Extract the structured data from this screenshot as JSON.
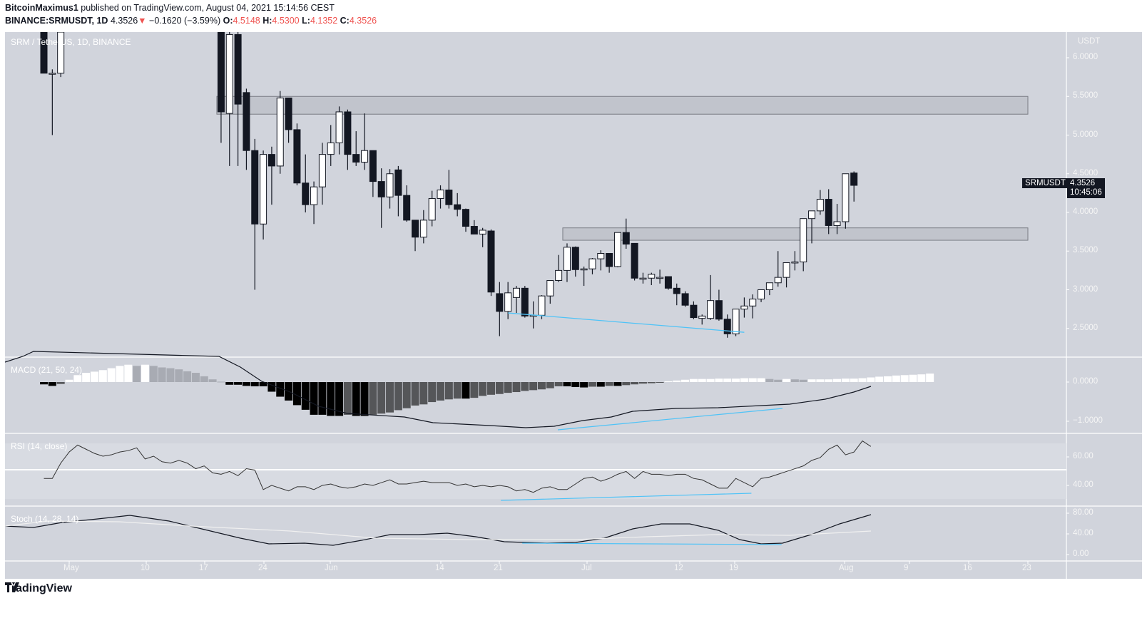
{
  "header": {
    "line1_author": "BitcoinMaximus1",
    "line1_rest": " published on TradingView.com, August 04, 2021 15:14:56 CEST",
    "symbol": "BINANCE:SRMUSDT, 1D",
    "last": "4.3526",
    "change_arrow": "▼",
    "change": "−0.1620 (−3.59%)",
    "o_label": "O:",
    "o": "4.5148",
    "h_label": "H:",
    "h": "4.5300",
    "l_label": "L:",
    "l": "4.1352",
    "c_label": "C:",
    "c": "4.3526"
  },
  "chart": {
    "title": "SRM / TetherUS, 1D, BINANCE",
    "currency": "USDT",
    "price_tag_symbol": "SRMUSDT",
    "price_tag_value": "4.3526",
    "price_tag_countdown": "10:45:06",
    "macd_label": "MACD (21, 50, 24)",
    "rsi_label": "RSI (14, close)",
    "stoch_label": "Stoch (14, 28, 14)"
  },
  "colors": {
    "background": "#d1d4dc",
    "bull_body": "#ffffff",
    "bear_body": "#131722",
    "zone_fill": "#c1c4cc",
    "zone_border": "#7a7d85",
    "divergence_line": "#4fc3f7",
    "hist_dark": "#000000",
    "hist_grey": "#555659",
    "hist_light": "#a8abb3"
  },
  "footer": {
    "brand": "TradingView"
  },
  "chart_data": [
    {
      "type": "candlestick",
      "title": "SRM / TetherUS, 1D, BINANCE",
      "ylabel": "USDT",
      "yticks": [
        6.0,
        5.5,
        5.0,
        4.5,
        4.0,
        3.5,
        3.0,
        2.5
      ],
      "ylim": [
        2.2,
        6.3
      ],
      "xticks": [
        "May",
        "10",
        "17",
        "24",
        "Jun",
        "14",
        "21",
        "Jul",
        "12",
        "19",
        "Aug",
        "9",
        "16",
        "23"
      ],
      "resistance_zones": [
        {
          "low": 5.27,
          "high": 5.5,
          "from": "May 19",
          "to": "Aug 23"
        },
        {
          "low": 3.64,
          "high": 3.8,
          "from": "Jun 29",
          "to": "Aug 23"
        }
      ],
      "divergence_line": {
        "from": {
          "date": "Jun 22",
          "price": 2.7
        },
        "to": {
          "date": "Jul 20",
          "price": 2.45
        }
      },
      "last_price": 4.3526,
      "candles": [
        {
          "d": "Apr 28",
          "o": 6.4,
          "h": 6.6,
          "l": 5.8,
          "c": 5.8
        },
        {
          "d": "Apr 29",
          "o": 5.8,
          "h": 5.85,
          "l": 5.0,
          "c": 5.8
        },
        {
          "d": "Apr 30",
          "o": 5.8,
          "h": 6.5,
          "l": 5.75,
          "c": 6.4
        },
        {
          "d": "May 19",
          "o": 6.4,
          "h": 6.5,
          "l": 4.9,
          "c": 5.3
        },
        {
          "d": "May 20",
          "o": 5.28,
          "h": 6.4,
          "l": 4.6,
          "c": 6.3
        },
        {
          "d": "May 21",
          "o": 6.3,
          "h": 6.4,
          "l": 4.6,
          "c": 5.4
        },
        {
          "d": "May 22",
          "o": 5.55,
          "h": 5.6,
          "l": 4.55,
          "c": 4.8
        },
        {
          "d": "May 23",
          "o": 4.8,
          "h": 4.95,
          "l": 3.0,
          "c": 3.85
        },
        {
          "d": "May 24",
          "o": 3.85,
          "h": 4.8,
          "l": 3.65,
          "c": 4.75
        },
        {
          "d": "May 25",
          "o": 4.75,
          "h": 4.85,
          "l": 4.1,
          "c": 4.6
        },
        {
          "d": "May 26",
          "o": 4.6,
          "h": 5.57,
          "l": 4.5,
          "c": 5.48
        },
        {
          "d": "May 27",
          "o": 5.48,
          "h": 5.48,
          "l": 4.9,
          "c": 5.07
        },
        {
          "d": "May 28",
          "o": 5.07,
          "h": 5.15,
          "l": 4.35,
          "c": 4.38
        },
        {
          "d": "May 29",
          "o": 4.38,
          "h": 4.75,
          "l": 4.0,
          "c": 4.1
        },
        {
          "d": "May 30",
          "o": 4.1,
          "h": 4.4,
          "l": 3.85,
          "c": 4.33
        },
        {
          "d": "May 31",
          "o": 4.33,
          "h": 4.9,
          "l": 4.1,
          "c": 4.75
        },
        {
          "d": "Jun 1",
          "o": 4.75,
          "h": 5.13,
          "l": 4.6,
          "c": 4.9
        },
        {
          "d": "Jun 2",
          "o": 4.9,
          "h": 5.37,
          "l": 4.75,
          "c": 5.3
        },
        {
          "d": "Jun 3",
          "o": 5.3,
          "h": 5.33,
          "l": 4.55,
          "c": 4.75
        },
        {
          "d": "Jun 4",
          "o": 4.75,
          "h": 5.05,
          "l": 4.6,
          "c": 4.65
        },
        {
          "d": "Jun 5",
          "o": 4.65,
          "h": 5.28,
          "l": 4.55,
          "c": 4.8
        },
        {
          "d": "Jun 6",
          "o": 4.8,
          "h": 4.8,
          "l": 4.2,
          "c": 4.4
        },
        {
          "d": "Jun 7",
          "o": 4.4,
          "h": 4.57,
          "l": 3.8,
          "c": 4.2
        },
        {
          "d": "Jun 8",
          "o": 4.2,
          "h": 4.56,
          "l": 4.05,
          "c": 4.5
        },
        {
          "d": "Jun 9",
          "o": 4.55,
          "h": 4.6,
          "l": 3.95,
          "c": 4.22
        },
        {
          "d": "Jun 10",
          "o": 4.22,
          "h": 4.35,
          "l": 3.88,
          "c": 3.9
        },
        {
          "d": "Jun 11",
          "o": 3.9,
          "h": 3.9,
          "l": 3.5,
          "c": 3.68
        },
        {
          "d": "Jun 12",
          "o": 3.68,
          "h": 4.03,
          "l": 3.6,
          "c": 3.9
        },
        {
          "d": "Jun 13",
          "o": 3.9,
          "h": 4.28,
          "l": 3.82,
          "c": 4.18
        },
        {
          "d": "Jun 14",
          "o": 4.18,
          "h": 4.35,
          "l": 4.05,
          "c": 4.29
        },
        {
          "d": "Jun 15",
          "o": 4.29,
          "h": 4.55,
          "l": 4.05,
          "c": 4.1
        },
        {
          "d": "Jun 16",
          "o": 4.1,
          "h": 4.25,
          "l": 3.95,
          "c": 4.04
        },
        {
          "d": "Jun 17",
          "o": 4.04,
          "h": 4.05,
          "l": 3.75,
          "c": 3.82
        },
        {
          "d": "Jun 18",
          "o": 3.82,
          "h": 3.9,
          "l": 3.72,
          "c": 3.72
        },
        {
          "d": "Jun 19",
          "o": 3.72,
          "h": 3.8,
          "l": 3.55,
          "c": 3.77
        },
        {
          "d": "Jun 20",
          "o": 3.76,
          "h": 3.78,
          "l": 2.92,
          "c": 2.97
        },
        {
          "d": "Jun 21",
          "o": 2.95,
          "h": 3.1,
          "l": 2.4,
          "c": 2.72
        },
        {
          "d": "Jun 22",
          "o": 2.72,
          "h": 3.1,
          "l": 2.62,
          "c": 2.96
        },
        {
          "d": "Jun 23",
          "o": 2.9,
          "h": 3.05,
          "l": 2.7,
          "c": 3.02
        },
        {
          "d": "Jun 24",
          "o": 3.02,
          "h": 3.05,
          "l": 2.64,
          "c": 2.66
        },
        {
          "d": "Jun 25",
          "o": 2.67,
          "h": 2.85,
          "l": 2.5,
          "c": 2.67
        },
        {
          "d": "Jun 26",
          "o": 2.67,
          "h": 2.93,
          "l": 2.62,
          "c": 2.92
        },
        {
          "d": "Jun 27",
          "o": 2.92,
          "h": 3.12,
          "l": 2.82,
          "c": 3.12
        },
        {
          "d": "Jun 28",
          "o": 3.12,
          "h": 3.45,
          "l": 3.1,
          "c": 3.25
        },
        {
          "d": "Jun 29",
          "o": 3.25,
          "h": 3.6,
          "l": 3.1,
          "c": 3.55
        },
        {
          "d": "Jun 30",
          "o": 3.55,
          "h": 3.56,
          "l": 3.17,
          "c": 3.26
        },
        {
          "d": "Jul 1",
          "o": 3.26,
          "h": 3.3,
          "l": 3.05,
          "c": 3.27
        },
        {
          "d": "Jul 2",
          "o": 3.27,
          "h": 3.41,
          "l": 3.2,
          "c": 3.4
        },
        {
          "d": "Jul 3",
          "o": 3.4,
          "h": 3.51,
          "l": 3.25,
          "c": 3.47
        },
        {
          "d": "Jul 4",
          "o": 3.47,
          "h": 3.47,
          "l": 3.22,
          "c": 3.3
        },
        {
          "d": "Jul 5",
          "o": 3.3,
          "h": 3.74,
          "l": 3.29,
          "c": 3.74
        },
        {
          "d": "Jul 6",
          "o": 3.74,
          "h": 3.92,
          "l": 3.53,
          "c": 3.59
        },
        {
          "d": "Jul 7",
          "o": 3.6,
          "h": 3.6,
          "l": 3.12,
          "c": 3.15
        },
        {
          "d": "Jul 8",
          "o": 3.15,
          "h": 3.22,
          "l": 3.08,
          "c": 3.15
        },
        {
          "d": "Jul 9",
          "o": 3.15,
          "h": 3.22,
          "l": 3.06,
          "c": 3.2
        },
        {
          "d": "Jul 10",
          "o": 3.15,
          "h": 3.26,
          "l": 3.08,
          "c": 3.16
        },
        {
          "d": "Jul 11",
          "o": 3.17,
          "h": 3.17,
          "l": 3.0,
          "c": 3.02
        },
        {
          "d": "Jul 12",
          "o": 3.02,
          "h": 3.08,
          "l": 2.8,
          "c": 2.95
        },
        {
          "d": "Jul 13",
          "o": 2.95,
          "h": 2.98,
          "l": 2.78,
          "c": 2.8
        },
        {
          "d": "Jul 14",
          "o": 2.8,
          "h": 2.85,
          "l": 2.62,
          "c": 2.64
        },
        {
          "d": "Jul 15",
          "o": 2.63,
          "h": 2.68,
          "l": 2.55,
          "c": 2.66
        },
        {
          "d": "Jul 16",
          "o": 2.63,
          "h": 3.19,
          "l": 2.61,
          "c": 2.86
        },
        {
          "d": "Jul 17",
          "o": 2.86,
          "h": 3.0,
          "l": 2.6,
          "c": 2.62
        },
        {
          "d": "Jul 18",
          "o": 2.62,
          "h": 2.68,
          "l": 2.38,
          "c": 2.43
        },
        {
          "d": "Jul 19",
          "o": 2.43,
          "h": 2.75,
          "l": 2.4,
          "c": 2.75
        },
        {
          "d": "Jul 20",
          "o": 2.75,
          "h": 2.9,
          "l": 2.64,
          "c": 2.79
        },
        {
          "d": "Jul 21",
          "o": 2.79,
          "h": 2.94,
          "l": 2.63,
          "c": 2.88
        },
        {
          "d": "Jul 22",
          "o": 2.88,
          "h": 3.0,
          "l": 2.84,
          "c": 3.0
        },
        {
          "d": "Jul 23",
          "o": 3.0,
          "h": 3.08,
          "l": 2.93,
          "c": 3.09
        },
        {
          "d": "Jul 24",
          "o": 3.09,
          "h": 3.5,
          "l": 3.04,
          "c": 3.16
        },
        {
          "d": "Jul 25",
          "o": 3.16,
          "h": 3.35,
          "l": 3.03,
          "c": 3.35
        },
        {
          "d": "Jul 26",
          "o": 3.35,
          "h": 3.5,
          "l": 3.25,
          "c": 3.36
        },
        {
          "d": "Jul 27",
          "o": 3.36,
          "h": 3.92,
          "l": 3.24,
          "c": 3.92
        },
        {
          "d": "Jul 28",
          "o": 3.92,
          "h": 4.02,
          "l": 3.6,
          "c": 4.02
        },
        {
          "d": "Jul 29",
          "o": 4.02,
          "h": 4.29,
          "l": 3.97,
          "c": 4.17
        },
        {
          "d": "Jul 30",
          "o": 4.17,
          "h": 4.3,
          "l": 3.72,
          "c": 3.83
        },
        {
          "d": "Jul 31",
          "o": 3.83,
          "h": 4.11,
          "l": 3.72,
          "c": 3.88
        },
        {
          "d": "Aug 1",
          "o": 3.88,
          "h": 4.5,
          "l": 3.79,
          "c": 4.5
        },
        {
          "d": "Aug 2",
          "o": 4.51,
          "h": 4.53,
          "l": 4.14,
          "c": 4.35
        }
      ]
    },
    {
      "type": "bar+line",
      "title": "MACD (21, 50, 24)",
      "yticks": [
        0.0,
        -1.0
      ],
      "macd_line_trend": "from ~+0.15 (early May) down to ~-1.03 (late Jun), rising to ~-0.08 (Aug 4)",
      "divergence_line": {
        "from": "Jun 26",
        "to": "Jul 19"
      },
      "histogram": [
        -0.06,
        -0.1,
        -0.05,
        0.06,
        0.18,
        0.24,
        0.27,
        0.31,
        0.36,
        0.42,
        0.45,
        0.42,
        0.45,
        0.42,
        0.38,
        0.36,
        0.33,
        0.28,
        0.24,
        0.15,
        0.07,
        0.01,
        -0.07,
        -0.07,
        -0.1,
        -0.11,
        -0.11,
        -0.25,
        -0.38,
        -0.48,
        -0.6,
        -0.72,
        -0.85,
        -0.85,
        -0.88,
        -0.88,
        -0.85,
        -0.88,
        -0.88,
        -0.85,
        -0.82,
        -0.79,
        -0.73,
        -0.68,
        -0.61,
        -0.58,
        -0.52,
        -0.48,
        -0.45,
        -0.43,
        -0.43,
        -0.41,
        -0.36,
        -0.33,
        -0.31,
        -0.28,
        -0.26,
        -0.23,
        -0.21,
        -0.19,
        -0.16,
        -0.11,
        -0.11,
        -0.13,
        -0.14,
        -0.12,
        -0.12,
        -0.1,
        -0.1,
        -0.08,
        -0.06,
        -0.04,
        -0.03,
        -0.01,
        0.02,
        0.04,
        0.06,
        0.08,
        0.08,
        0.08,
        0.09,
        0.09,
        0.09,
        0.1,
        0.1,
        0.1,
        0.08,
        0.06,
        0.08,
        0.07,
        0.06,
        0.07,
        0.07,
        0.07,
        0.08,
        0.09,
        0.09,
        0.1,
        0.12,
        0.14,
        0.15,
        0.17,
        0.18,
        0.19,
        0.2,
        0.22
      ]
    },
    {
      "type": "line",
      "title": "RSI (14, close)",
      "yticks": [
        60,
        40
      ],
      "bands": [
        30,
        50,
        70
      ],
      "values": [
        44,
        44,
        55,
        63,
        68,
        65,
        62,
        60,
        61,
        63,
        64,
        66,
        58,
        60,
        56,
        55,
        57,
        55,
        51,
        53,
        48,
        47,
        49,
        46,
        51,
        50,
        36,
        39,
        37,
        35,
        38,
        38,
        36,
        39,
        40,
        38,
        37,
        38,
        40,
        39,
        41,
        43,
        40,
        40,
        41,
        42,
        41,
        41,
        41,
        39,
        40,
        38,
        39,
        38,
        39,
        38,
        35,
        36,
        34,
        37,
        38,
        36,
        36,
        40,
        44,
        45,
        42,
        44,
        47,
        49,
        44,
        49,
        47,
        47,
        46,
        47,
        47,
        44,
        43,
        40,
        37,
        37,
        44,
        41,
        38,
        44,
        45,
        47,
        49,
        51,
        53,
        57,
        59,
        65,
        68,
        61,
        63,
        71,
        67
      ],
      "divergence_line": {
        "from": "Jun 22",
        "to": "Jul 20"
      }
    },
    {
      "type": "line",
      "title": "Stoch (14, 28, 14)",
      "yticks": [
        80,
        40,
        0
      ],
      "k_trend": "~50 early May, peak ~75 (May 9), trough ~20 (Jun 1), ~40 mid-Jun, ~20 late Jun, peak ~55 (Jul 12), trough ~18 (Jul 22), rising to ~75 (Aug 4)",
      "d_trend": "~65 early May falling gradually to ~30 (mid Jun), flat, rising to ~40 by Aug 4",
      "divergence_line": {
        "from": "Jun 22",
        "to": "Jul 24"
      }
    }
  ]
}
